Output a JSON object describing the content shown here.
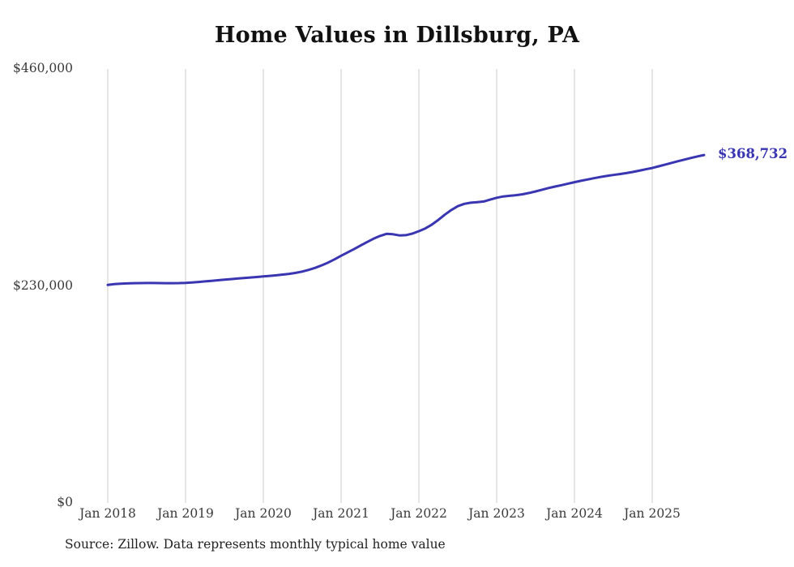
{
  "title": "Home Values in Dillsburg, PA",
  "source_note": "Source: Zillow. Data represents monthly typical home value",
  "chart_data": {
    "type": "line",
    "title": "Home Values in Dillsburg, PA",
    "series_name": "Monthly typical home value",
    "unit": "USD",
    "ylim": [
      0,
      460000
    ],
    "ylabel": "",
    "xlabel": "",
    "grid": "vertical-only",
    "legend": "none",
    "y_ticks": [
      {
        "label": "$460,000",
        "value": 460000
      },
      {
        "label": "$230,000",
        "value": 230000
      },
      {
        "label": "$0",
        "value": 0
      }
    ],
    "x_ticks": [
      "Jan 2018",
      "Jan 2019",
      "Jan 2020",
      "Jan 2021",
      "Jan 2022",
      "Jan 2023",
      "Jan 2024",
      "Jan 2025"
    ],
    "start_month": "2018-01",
    "end_month": "2025-09",
    "end_value": 368732,
    "end_label": "$368,732",
    "line_color": "#3a35b1",
    "grid_color": "#cccccc",
    "values": [
      231000,
      231900,
      232400,
      232700,
      232900,
      233000,
      233100,
      233100,
      233000,
      232900,
      232900,
      233000,
      233300,
      233700,
      234200,
      234800,
      235400,
      236000,
      236600,
      237200,
      237800,
      238400,
      238900,
      239500,
      240100,
      240700,
      241300,
      242000,
      242800,
      243800,
      245200,
      247000,
      249200,
      251800,
      254800,
      258200,
      262000,
      265500,
      269000,
      272800,
      276500,
      280000,
      283000,
      285200,
      284800,
      283600,
      283800,
      285500,
      288000,
      291000,
      295000,
      300000,
      305500,
      310500,
      314500,
      317000,
      318200,
      318800,
      319500,
      321500,
      323500,
      324800,
      325500,
      326200,
      327200,
      328500,
      330200,
      332000,
      333800,
      335300,
      336800,
      338400,
      340000,
      341400,
      342800,
      344200,
      345500,
      346600,
      347600,
      348600,
      349600,
      350800,
      352200,
      353600,
      355000,
      356800,
      358600,
      360400,
      362200,
      364000,
      365700,
      367300,
      368732
    ]
  }
}
